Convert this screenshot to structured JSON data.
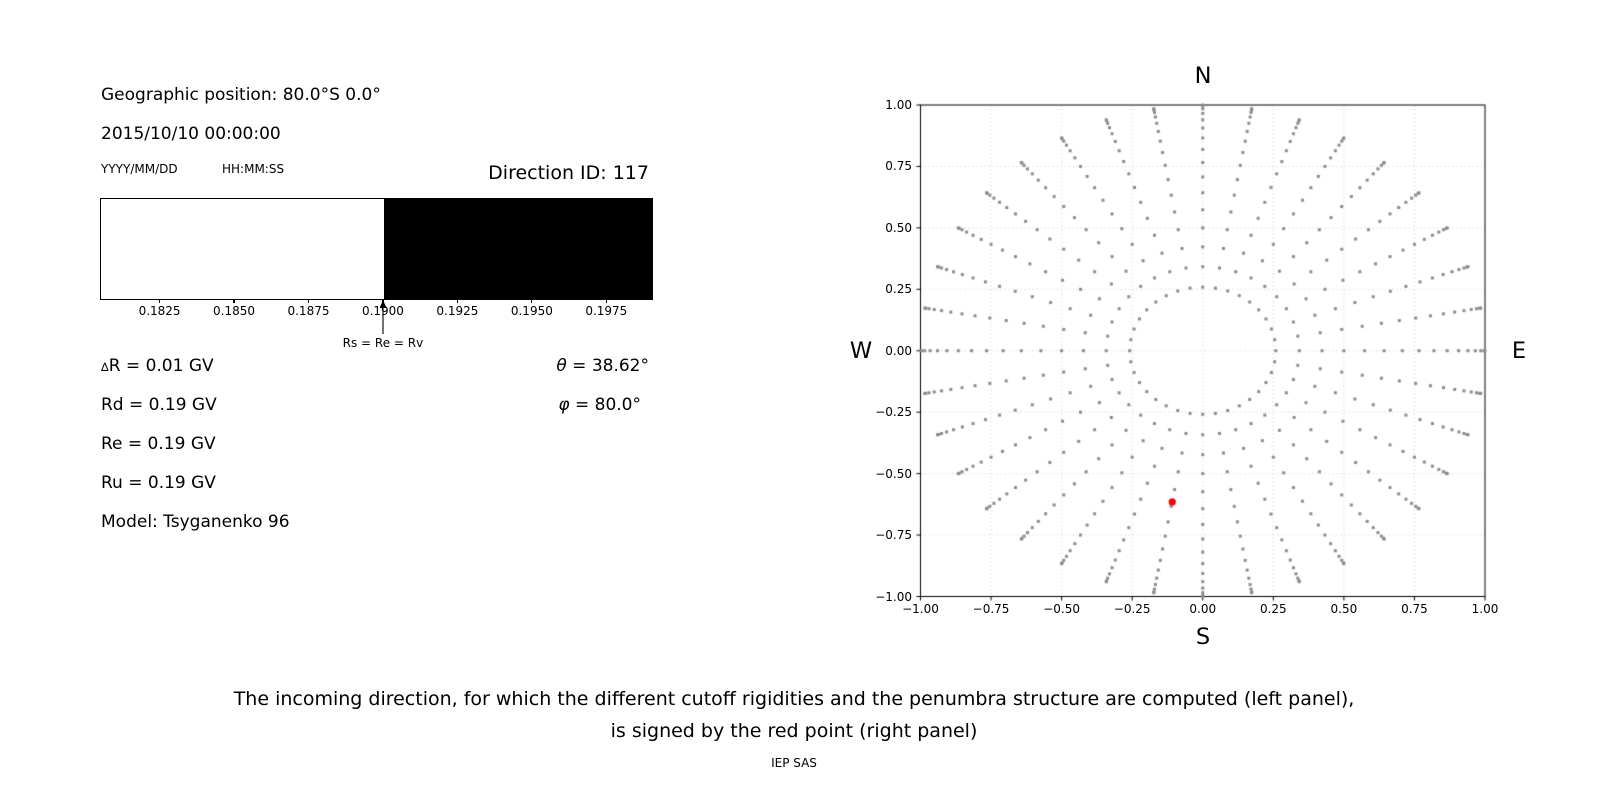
{
  "left_panel": {
    "geographic_position": "Geographic position: 80.0°S 0.0°",
    "datetime": "2015/10/10 00:00:00",
    "date_format_label": "YYYY/MM/DD",
    "time_format_label": "HH:MM:SS",
    "direction_id_label": "Direction ID: 117",
    "rigidities": {
      "delta_symbol": "∆",
      "delta_rest": "R = 0.01 GV",
      "rd": "Rd = 0.19 GV",
      "re": "Re = 0.19 GV",
      "ru": "Ru = 0.19 GV",
      "model": "Model: Tsyganenko 96"
    },
    "angles": {
      "theta_symbol": "θ",
      "theta_rest": " = 38.62°",
      "phi_symbol": "φ",
      "phi_rest": " = 80.0°"
    }
  },
  "right_panel": {
    "compass": {
      "north": "N",
      "south": "S",
      "west": "W",
      "east": "E"
    }
  },
  "caption": {
    "line1": "The incoming direction, for which the different cutoff rigidities and the penumbra structure are computed (left panel),",
    "line2": "is signed by the red point (right panel)",
    "credit": "IEP SAS"
  },
  "chart_data": [
    {
      "type": "bar",
      "description_annotation": "Rs = Re = Rv",
      "x_range": [
        0.1805,
        0.199
      ],
      "boundary": 0.19,
      "regions": [
        {
          "from": 0.1805,
          "to": 0.19,
          "color": "#ffffff",
          "meaning": "allowed"
        },
        {
          "from": 0.19,
          "to": 0.199,
          "color": "#000000",
          "meaning": "forbidden"
        }
      ],
      "x_tick_values": [
        0.1825,
        0.185,
        0.1875,
        0.19,
        0.1925,
        0.195,
        0.1975
      ],
      "x_tick_labels": [
        "0.1825",
        "0.1850",
        "0.1875",
        "0.1900",
        "0.1925",
        "0.1950",
        "0.1975"
      ],
      "arrow_x": 0.19
    },
    {
      "type": "scatter",
      "xlim": [
        -1,
        1
      ],
      "ylim": [
        -1,
        1
      ],
      "grid": true,
      "x_tick_values": [
        -1,
        -0.75,
        -0.5,
        -0.25,
        0,
        0.25,
        0.5,
        0.75,
        1
      ],
      "x_tick_labels": [
        "−1.00",
        "−0.75",
        "−0.50",
        "−0.25",
        "0.00",
        "0.25",
        "0.50",
        "0.75",
        "1.00"
      ],
      "y_tick_values": [
        1,
        0.75,
        0.5,
        0.25,
        0,
        -0.25,
        -0.5,
        -0.75,
        -1
      ],
      "y_tick_labels": [
        "1.00",
        "0.75",
        "0.50",
        "0.25",
        "0.00",
        "−0.25",
        "−0.50",
        "−0.75",
        "−1.00"
      ],
      "compass_labels": {
        "top": "N",
        "bottom": "S",
        "left": "W",
        "right": "E"
      },
      "direction_grid": {
        "azimuth_start_deg": 0,
        "azimuth_step_deg": 10,
        "azimuth_count": 36,
        "zenith_start_deg": 15,
        "zenith_end_deg": 90,
        "zenith_step_deg": 5,
        "radius_formula": "sin(zenith)",
        "marker": "square",
        "marker_size_px": 3,
        "color": "#8c8c8c"
      },
      "red_point": {
        "x": -0.108,
        "y": -0.615,
        "color": "#ff0000",
        "radius_px": 3.6
      },
      "grid_color": "#dcdcdc",
      "axis_color": "#000000"
    }
  ]
}
